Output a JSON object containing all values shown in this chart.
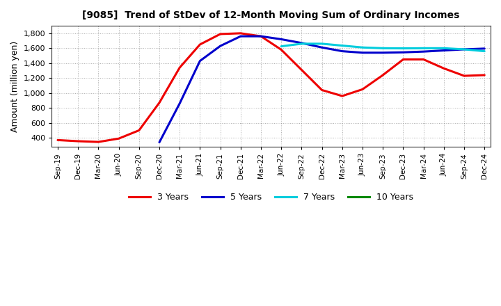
{
  "title": "[9085]  Trend of StDev of 12-Month Moving Sum of Ordinary Incomes",
  "ylabel": "Amount (million yen)",
  "ylim": [
    280,
    1900
  ],
  "yticks": [
    400,
    600,
    800,
    1000,
    1200,
    1400,
    1600,
    1800
  ],
  "x_labels": [
    "Sep-19",
    "Dec-19",
    "Mar-20",
    "Jun-20",
    "Sep-20",
    "Dec-20",
    "Mar-21",
    "Jun-21",
    "Sep-21",
    "Dec-21",
    "Mar-22",
    "Jun-22",
    "Sep-22",
    "Dec-22",
    "Mar-23",
    "Jun-23",
    "Sep-23",
    "Dec-23",
    "Mar-24",
    "Jun-24",
    "Sep-24",
    "Dec-24"
  ],
  "series": {
    "3 Years": {
      "color": "#EE0000",
      "values": [
        370,
        355,
        345,
        390,
        500,
        870,
        1340,
        1650,
        1790,
        1800,
        1760,
        1580,
        1310,
        1040,
        960,
        1050,
        1240,
        1450,
        1450,
        1330,
        1230,
        1240
      ]
    },
    "5 Years": {
      "color": "#0000CC",
      "values": [
        null,
        null,
        null,
        null,
        null,
        340,
        860,
        1430,
        1630,
        1760,
        1760,
        1720,
        1670,
        1610,
        1560,
        1540,
        1540,
        1545,
        1555,
        1570,
        1585,
        1595
      ]
    },
    "7 Years": {
      "color": "#00CCDD",
      "values": [
        null,
        null,
        null,
        null,
        null,
        null,
        null,
        null,
        null,
        null,
        null,
        1625,
        1660,
        1660,
        1635,
        1610,
        1600,
        1598,
        1600,
        1600,
        1585,
        1560
      ]
    },
    "10 Years": {
      "color": "#008800",
      "values": [
        null,
        null,
        null,
        null,
        null,
        null,
        null,
        null,
        null,
        null,
        null,
        null,
        null,
        null,
        null,
        null,
        null,
        null,
        null,
        null,
        null,
        null
      ]
    }
  },
  "legend_order": [
    "3 Years",
    "5 Years",
    "7 Years",
    "10 Years"
  ],
  "background_color": "#FFFFFF",
  "grid_color": "#999999"
}
